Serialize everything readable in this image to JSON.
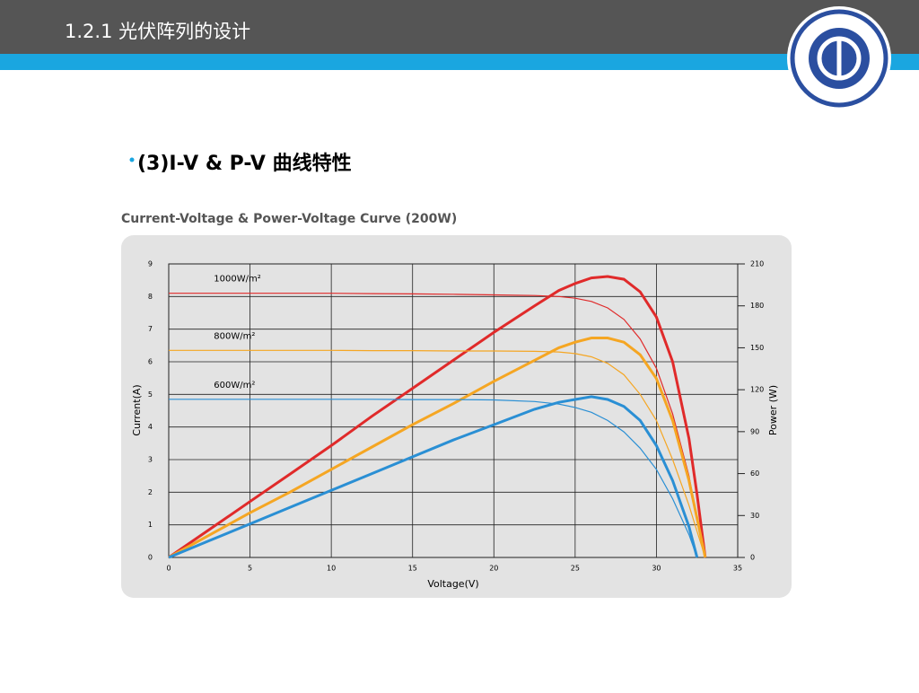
{
  "slide": {
    "title": "1.2.1 光伏阵列的设计",
    "bullet": "(3)I-V & P-V 曲线特性"
  },
  "chart_data": {
    "type": "line",
    "title": "Current-Voltage & Power-Voltage Curve (200W)",
    "x_label": "Voltage(V)",
    "y_label": "Current(A)",
    "y2_label": "Power (W)",
    "x": [
      0,
      2.5,
      5,
      7.5,
      10,
      12.5,
      15,
      17.5,
      20,
      22.5,
      24,
      25,
      26,
      27,
      28,
      29,
      30,
      31,
      32,
      32.5,
      33
    ],
    "xlim": [
      0,
      35
    ],
    "xticks": [
      0,
      5,
      10,
      15,
      20,
      25,
      30,
      35
    ],
    "ylim": [
      0,
      9
    ],
    "yticks": [
      0,
      1,
      2,
      3,
      4,
      5,
      6,
      7,
      8,
      9
    ],
    "y2lim": [
      0,
      210
    ],
    "y2ticks": [
      0,
      30,
      60,
      90,
      120,
      150,
      180,
      210
    ],
    "grid": true,
    "series": [
      {
        "name": "1000W/m²",
        "color": "#e02a2a",
        "values": [
          8.1,
          8.1,
          8.1,
          8.1,
          8.1,
          8.09,
          8.08,
          8.07,
          8.05,
          8.03,
          8.0,
          7.95,
          7.85,
          7.65,
          7.3,
          6.7,
          5.8,
          4.4,
          2.5,
          1.2,
          0
        ]
      },
      {
        "color": "#e02a2a",
        "axis": "y2",
        "values": [
          0,
          20,
          40,
          60,
          80,
          101,
          121,
          141,
          161,
          180,
          191,
          196,
          200,
          201,
          199,
          190,
          172,
          140,
          85,
          45,
          0
        ]
      },
      {
        "name": "800W/m²",
        "color": "#f5a623",
        "values": [
          6.35,
          6.35,
          6.35,
          6.35,
          6.35,
          6.34,
          6.34,
          6.33,
          6.33,
          6.32,
          6.3,
          6.25,
          6.15,
          5.95,
          5.6,
          5.0,
          4.2,
          3.0,
          1.6,
          0.8,
          0
        ]
      },
      {
        "color": "#f5a623",
        "axis": "y2",
        "values": [
          0,
          16,
          32,
          47,
          63,
          79,
          95,
          110,
          126,
          141,
          150,
          154,
          157,
          157,
          154,
          145,
          128,
          98,
          55,
          28,
          0
        ]
      },
      {
        "name": "600W/m²",
        "color": "#2a8fd4",
        "values": [
          4.85,
          4.85,
          4.85,
          4.85,
          4.85,
          4.85,
          4.84,
          4.84,
          4.83,
          4.78,
          4.7,
          4.6,
          4.45,
          4.2,
          3.85,
          3.35,
          2.7,
          1.8,
          0.7,
          0,
          null
        ]
      },
      {
        "color": "#2a8fd4",
        "axis": "y2",
        "values": [
          0,
          12,
          24,
          36,
          48,
          60,
          72,
          84,
          95,
          106,
          111,
          113,
          115,
          113,
          108,
          98,
          80,
          55,
          22,
          0,
          null
        ]
      }
    ]
  }
}
